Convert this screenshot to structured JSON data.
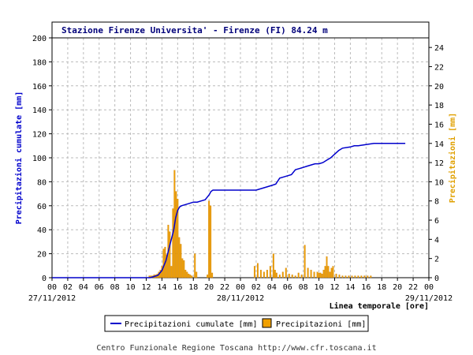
{
  "chart_data": {
    "type": "bar+line",
    "title": "Stazione Firenze Universita' - Firenze (FI) 84.24 m",
    "ylabel_left": "Precipitazioni cumulate [mm]",
    "ylabel_right": "Precipitazioni [mm]",
    "xlabel": "Linea temporale [ore]",
    "ylim_left": [
      0,
      200
    ],
    "ylim_right": [
      0,
      25
    ],
    "yticks_left": [
      "0",
      "20",
      "40",
      "60",
      "80",
      "100",
      "120",
      "140",
      "160",
      "180",
      "200"
    ],
    "yticks_right": [
      "0",
      "2",
      "4",
      "6",
      "8",
      "10",
      "12",
      "14",
      "16",
      "18",
      "20",
      "22",
      "24"
    ],
    "xticks": [
      "00",
      "02",
      "04",
      "06",
      "08",
      "10",
      "12",
      "14",
      "16",
      "18",
      "20",
      "22",
      "00",
      "02",
      "04",
      "06",
      "08",
      "10",
      "12",
      "14",
      "16",
      "18",
      "20",
      "22",
      "00"
    ],
    "date_labels": [
      {
        "text": "27/11/2012",
        "hour": 0
      },
      {
        "text": "28/11/2012",
        "hour": 24
      },
      {
        "text": "29/11/2012",
        "hour": 48
      }
    ],
    "grid": true,
    "legend": {
      "placement": "bottom",
      "entries": [
        "Precipitazioni cumulate [mm]",
        "Precipitazioni [mm]"
      ]
    },
    "colors": {
      "line": "#0000cc",
      "bars": "#f0a000",
      "bars_edge": "#c87800",
      "title": "#00007a",
      "right_axis": "#e0a000"
    },
    "series": [
      {
        "name": "Precipitazioni cumulate [mm]",
        "kind": "line",
        "axis": "left",
        "x": [
          0,
          12.5,
          13.0,
          13.5,
          14.0,
          14.5,
          15.0,
          15.5,
          15.75,
          16.0,
          16.25,
          16.5,
          17.0,
          17.5,
          18.0,
          18.5,
          19.0,
          19.5,
          20.0,
          20.25,
          20.5,
          21.0,
          22.0,
          24.0,
          26.0,
          27.0,
          27.5,
          28.0,
          28.5,
          29.0,
          29.5,
          30.0,
          30.5,
          31.0,
          32.0,
          32.5,
          33.0,
          33.5,
          34.0,
          34.5,
          35.0,
          35.5,
          36.0,
          36.5,
          37.0,
          38.0,
          38.5,
          39.0,
          40.0,
          41.0,
          42.0,
          43.0,
          44.0,
          45.0
        ],
        "y": [
          0,
          0,
          1,
          2,
          6,
          14,
          27,
          40,
          50,
          56,
          59,
          60,
          61,
          62,
          63,
          63,
          64,
          65,
          69,
          72,
          73,
          73,
          73,
          73,
          73,
          75,
          76,
          77,
          78,
          83,
          84,
          85,
          86,
          90,
          92,
          93,
          94,
          95,
          95,
          96,
          98,
          100,
          103,
          106,
          108,
          109,
          110,
          110,
          111,
          112,
          112,
          112,
          112,
          112
        ]
      },
      {
        "name": "Precipitazioni [mm]",
        "kind": "bar",
        "axis": "right",
        "x": [
          12.4,
          12.6,
          12.8,
          13.0,
          13.2,
          13.4,
          13.6,
          13.8,
          14.0,
          14.2,
          14.4,
          14.6,
          14.8,
          15.0,
          15.2,
          15.4,
          15.6,
          15.8,
          16.0,
          16.2,
          16.4,
          16.6,
          16.8,
          17.0,
          17.2,
          17.4,
          17.6,
          17.8,
          18.2,
          18.4,
          19.8,
          20.0,
          20.2,
          20.4,
          25.8,
          26.2,
          26.6,
          27.0,
          27.4,
          27.8,
          28.2,
          28.4,
          28.6,
          29.0,
          29.4,
          29.8,
          30.2,
          30.6,
          31.0,
          31.4,
          31.8,
          32.2,
          32.6,
          33.0,
          33.4,
          33.8,
          34.0,
          34.2,
          34.4,
          34.6,
          34.8,
          35.0,
          35.2,
          35.4,
          35.6,
          35.8,
          36.2,
          36.6,
          37.0,
          37.4,
          37.8,
          38.2,
          38.6,
          39.0,
          39.4,
          39.8,
          40.2,
          40.6
        ],
        "y": [
          0.2,
          0.2,
          0.2,
          0.3,
          0.3,
          0.4,
          0.6,
          0.8,
          1.2,
          3.0,
          3.2,
          2.4,
          5.5,
          4.8,
          1.2,
          7.2,
          11.2,
          9.0,
          8.2,
          4.2,
          3.5,
          2.0,
          1.8,
          0.8,
          0.6,
          0.4,
          0.3,
          0.2,
          2.5,
          0.6,
          0.3,
          8.0,
          7.5,
          0.5,
          1.2,
          1.5,
          0.8,
          0.6,
          0.8,
          1.2,
          2.5,
          0.8,
          0.5,
          0.3,
          0.6,
          1.0,
          0.4,
          0.3,
          0.2,
          0.5,
          0.3,
          3.4,
          1.0,
          0.8,
          0.6,
          0.6,
          0.5,
          0.5,
          0.4,
          0.8,
          1.2,
          2.2,
          1.2,
          0.6,
          1.0,
          1.2,
          0.4,
          0.3,
          0.2,
          0.2,
          0.2,
          0.2,
          0.2,
          0.2,
          0.2,
          0.2,
          0.2,
          0.2
        ]
      }
    ]
  },
  "legend": {
    "line_label": "Precipitazioni cumulate [mm]",
    "bar_label": "Precipitazioni [mm]"
  },
  "footer": "Centro Funzionale Regione Toscana http://www.cfr.toscana.it"
}
